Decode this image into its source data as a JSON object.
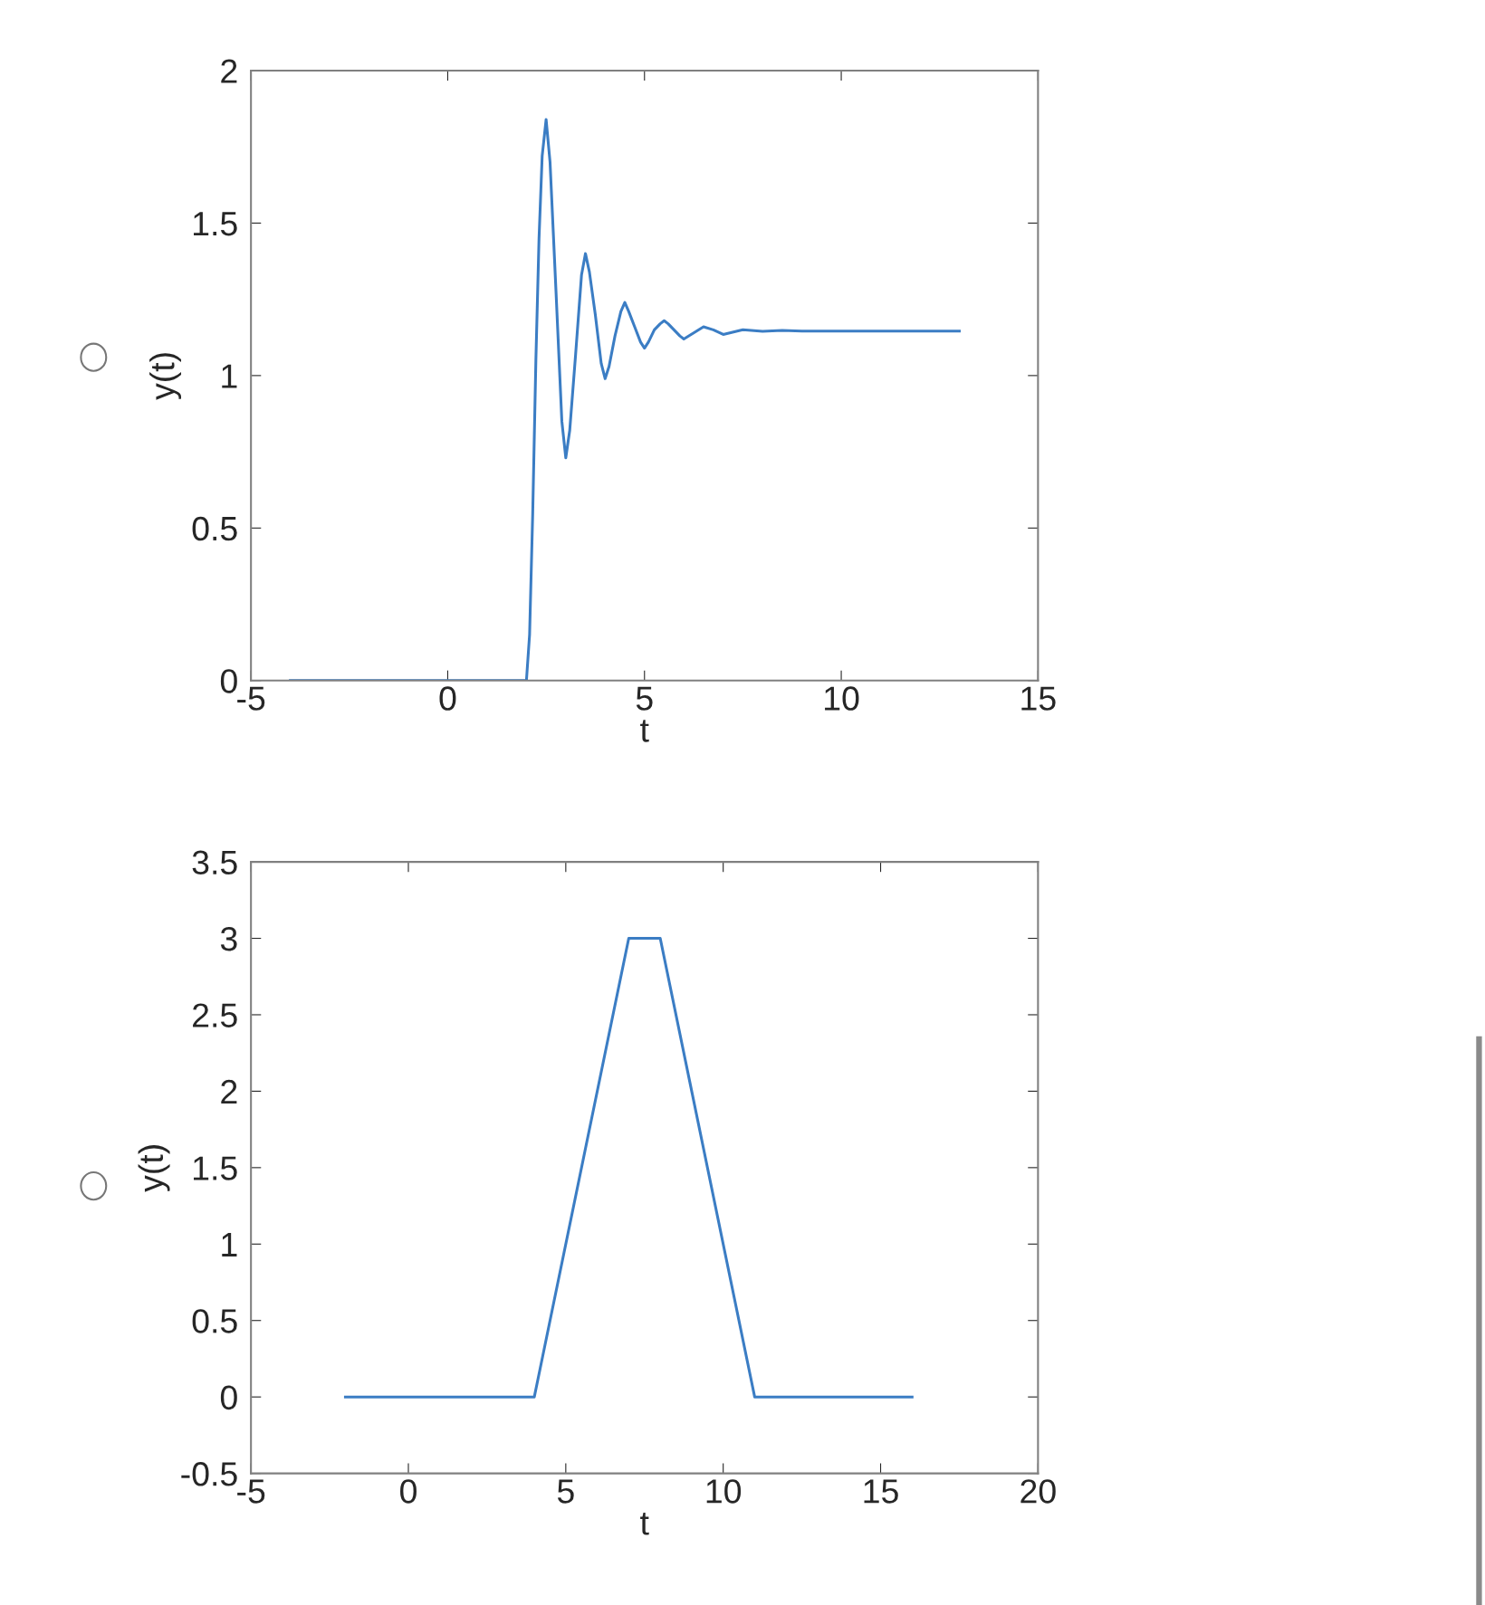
{
  "chart_data": [
    {
      "type": "line",
      "xlabel": "t",
      "ylabel": "y(t)",
      "xlim": [
        -5,
        15
      ],
      "ylim": [
        0,
        2
      ],
      "xticks": [
        -5,
        0,
        5,
        10,
        15
      ],
      "yticks": [
        0,
        0.5,
        1,
        1.5,
        2
      ],
      "grid": false,
      "legend": false,
      "series": [
        {
          "color": "#3b7dc4",
          "x": [
            -4,
            2,
            2.08,
            2.16,
            2.24,
            2.32,
            2.4,
            2.5,
            2.6,
            2.75,
            2.9,
            3.0,
            3.1,
            3.25,
            3.4,
            3.5,
            3.6,
            3.75,
            3.9,
            4.0,
            4.1,
            4.25,
            4.4,
            4.5,
            4.6,
            4.75,
            4.9,
            5.0,
            5.1,
            5.25,
            5.4,
            5.5,
            5.6,
            5.75,
            5.9,
            6.0,
            6.25,
            6.5,
            6.75,
            7.0,
            7.5,
            8.0,
            8.5,
            9,
            13
          ],
          "values": [
            0,
            0,
            0.15,
            0.55,
            1.05,
            1.45,
            1.72,
            1.84,
            1.7,
            1.28,
            0.85,
            0.73,
            0.82,
            1.07,
            1.33,
            1.4,
            1.34,
            1.2,
            1.04,
            0.99,
            1.03,
            1.13,
            1.21,
            1.24,
            1.21,
            1.16,
            1.11,
            1.09,
            1.11,
            1.15,
            1.17,
            1.18,
            1.17,
            1.15,
            1.13,
            1.12,
            1.14,
            1.16,
            1.15,
            1.135,
            1.15,
            1.145,
            1.148,
            1.146,
            1.146
          ]
        }
      ]
    },
    {
      "type": "line",
      "xlabel": "t",
      "ylabel": "y(t)",
      "xlim": [
        -5,
        20
      ],
      "ylim": [
        -0.5,
        3.5
      ],
      "xticks": [
        -5,
        0,
        5,
        10,
        15,
        20
      ],
      "yticks": [
        -0.5,
        0,
        0.5,
        1,
        1.5,
        2,
        2.5,
        3,
        3.5
      ],
      "grid": false,
      "legend": false,
      "series": [
        {
          "color": "#3b7dc4",
          "x": [
            -2,
            4,
            7,
            8,
            11,
            16
          ],
          "values": [
            0,
            0,
            3,
            3,
            0,
            0
          ]
        }
      ]
    }
  ]
}
